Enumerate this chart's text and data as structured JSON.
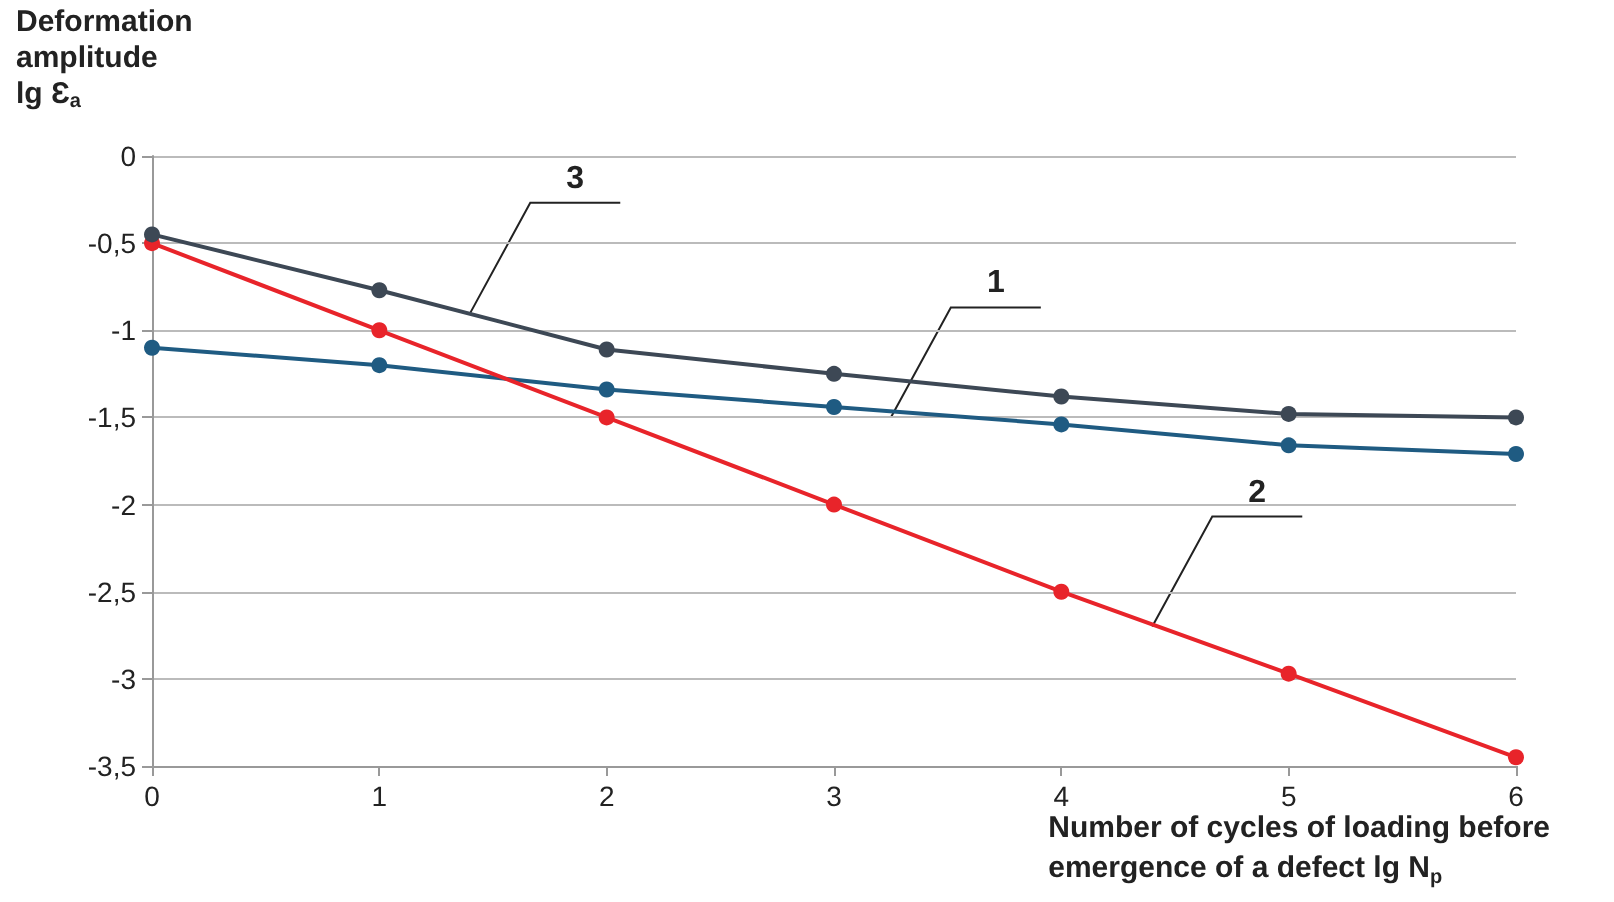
{
  "chart_data": {
    "type": "line",
    "xlabel": "Number of cycles of loading before\nemergence of a defect lg N$_{p}$",
    "ylabel": "Deformation\namplitude\nlg Ɛ$_{a}$",
    "x": [
      0,
      1,
      2,
      3,
      4,
      5,
      6
    ],
    "series": [
      {
        "color": "#1f5b82",
        "values": [
          -1.1,
          -1.2,
          -1.34,
          -1.44,
          -1.54,
          -1.66,
          -1.71
        ]
      },
      {
        "color": "#e8242a",
        "values": [
          -0.5,
          -1,
          -1.5,
          -2,
          -2.5,
          -2.97,
          -3.45
        ]
      },
      {
        "color": "#3d4855",
        "values": [
          -0.45,
          -0.77,
          -1.11,
          -1.25,
          -1.38,
          -1.48,
          -1.5
        ]
      }
    ],
    "annotations": [
      {
        "text": "1",
        "x": 3.25,
        "y": -1.5
      },
      {
        "text": "2",
        "x": 4.4,
        "y": -2.7
      },
      {
        "text": "3",
        "x": 1.4,
        "y": -0.9
      }
    ],
    "xlim": [
      0,
      6
    ],
    "xticks": [
      0,
      1,
      2,
      3,
      4,
      5,
      6
    ],
    "ylim": [
      -3.5,
      0
    ],
    "yticks": [
      {
        "value": -3.5,
        "label": "-3,5"
      },
      {
        "value": -3,
        "label": "-3"
      },
      {
        "value": -2.5,
        "label": "-2,5"
      },
      {
        "value": -2,
        "label": "-2"
      },
      {
        "value": -1.5,
        "label": "-1,5"
      },
      {
        "value": -1,
        "label": "-1"
      },
      {
        "value": -0.5,
        "label": "-0,5"
      },
      {
        "value": 0,
        "label": "0"
      }
    ],
    "grid": "y",
    "marker": "circle",
    "line_style": "solid"
  }
}
